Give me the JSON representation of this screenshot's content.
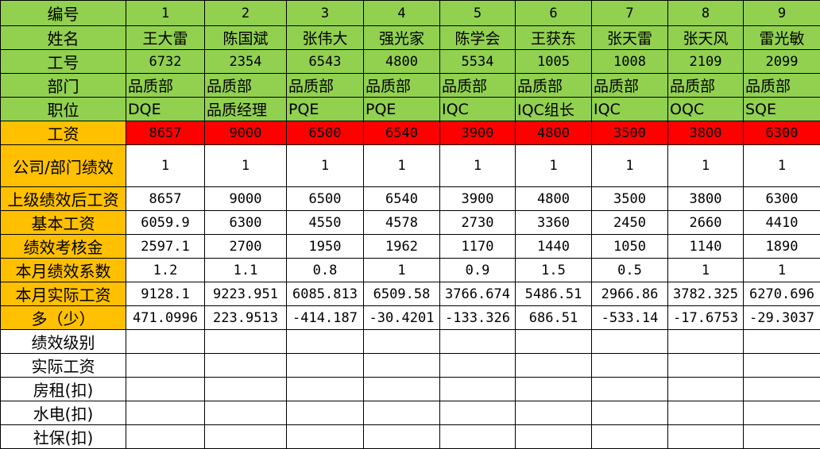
{
  "table": {
    "rows": [
      [
        "编号",
        "1",
        "2",
        "3",
        "4",
        "5",
        "6",
        "7",
        "8",
        "9"
      ],
      [
        "姓名",
        "王大雷",
        "陈国斌",
        "张伟大",
        "强光家",
        "陈学会",
        "王获东",
        "张天雷",
        "张天风",
        "雷光敏"
      ],
      [
        "工号",
        "6732",
        "2354",
        "6543",
        "4800",
        "5534",
        "1005",
        "1008",
        "2109",
        "2099"
      ],
      [
        "部门",
        "品质部",
        "品质部",
        "品质部",
        "品质部",
        "品质部",
        "品质部",
        "品质部",
        "品质部",
        "品质部"
      ],
      [
        "职位",
        "DQE",
        "品质经理",
        "PQE",
        "PQE",
        "IQC",
        "IQC组长",
        "IQC",
        "OQC",
        "SQE"
      ],
      [
        "工资",
        "8657",
        "9000",
        "6500",
        "6540",
        "3900",
        "4800",
        "3500",
        "3800",
        "6300"
      ],
      [
        "公司/部门绩效",
        "1",
        "1",
        "1",
        "1",
        "1",
        "1",
        "1",
        "1",
        "1"
      ],
      [
        "上级绩效后工资",
        "8657",
        "9000",
        "6500",
        "6540",
        "3900",
        "4800",
        "3500",
        "3800",
        "6300"
      ],
      [
        "基本工资",
        "6059.9",
        "6300",
        "4550",
        "4578",
        "2730",
        "3360",
        "2450",
        "2660",
        "4410"
      ],
      [
        "绩效考核金",
        "2597.1",
        "2700",
        "1950",
        "1962",
        "1170",
        "1440",
        "1050",
        "1140",
        "1890"
      ],
      [
        "本月绩效系数",
        "1.2",
        "1.1",
        "0.8",
        "1",
        "0.9",
        "1.5",
        "0.5",
        "1",
        "1"
      ],
      [
        "本月实际工资",
        "9128.1",
        "9223.951",
        "6085.813",
        "6509.58",
        "3766.674",
        "5486.51",
        "2966.86",
        "3782.325",
        "6270.696"
      ],
      [
        "多（少）",
        "471.0996",
        "223.9513",
        "-414.187",
        "-30.4201",
        "-133.326",
        "686.51",
        "-533.14",
        "-17.6753",
        "-29.3037"
      ],
      [
        "绩效级别"
      ],
      [
        "实际工资"
      ],
      [
        "房租(扣)"
      ],
      [
        "水电(扣)"
      ],
      [
        "社保(扣)"
      ]
    ]
  }
}
